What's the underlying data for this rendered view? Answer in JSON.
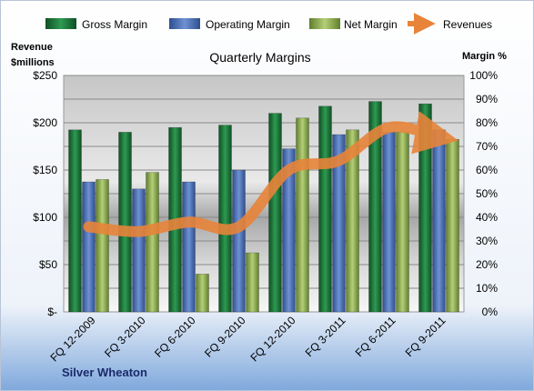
{
  "chart_data": {
    "type": "bar",
    "title": "Quarterly Margins",
    "footer": "Silver Wheaton",
    "categories": [
      "FQ 12-2009",
      "FQ 3-2010",
      "FQ 6-2010",
      "FQ 9-2010",
      "FQ 12-2010",
      "FQ 3-2011",
      "FQ 6-2011",
      "FQ 9-2011"
    ],
    "series": [
      {
        "name": "Gross Margin",
        "type": "bar",
        "axis": "right",
        "color": "#1f7a3c",
        "values": [
          77,
          76,
          78,
          79,
          84,
          87,
          89,
          88
        ]
      },
      {
        "name": "Operating Margin",
        "type": "bar",
        "axis": "right",
        "color": "#4a6fb5",
        "values": [
          55,
          52,
          55,
          60,
          69,
          75,
          76,
          77
        ]
      },
      {
        "name": "Net Margin",
        "type": "bar",
        "axis": "right",
        "color": "#8fae4f",
        "values": [
          56,
          59,
          16,
          25,
          82,
          77,
          76,
          73
        ]
      },
      {
        "name": "Revenues",
        "type": "line",
        "axis": "left",
        "color": "#e8843a",
        "values": [
          90,
          85,
          95,
          90,
          150,
          160,
          195,
          185
        ]
      }
    ],
    "left_axis": {
      "label": "Revenue $millions",
      "lines": [
        "Revenue",
        "$millions"
      ],
      "ylim": [
        0,
        250
      ],
      "ticks": [
        "$-",
        "$50",
        "$100",
        "$150",
        "$200",
        "$250"
      ]
    },
    "right_axis": {
      "label": "Margin %",
      "ylim": [
        0,
        100
      ],
      "ticks": [
        "0%",
        "10%",
        "20%",
        "30%",
        "40%",
        "50%",
        "60%",
        "70%",
        "80%",
        "90%",
        "100%"
      ]
    },
    "legend_position": "top",
    "grid": true
  }
}
